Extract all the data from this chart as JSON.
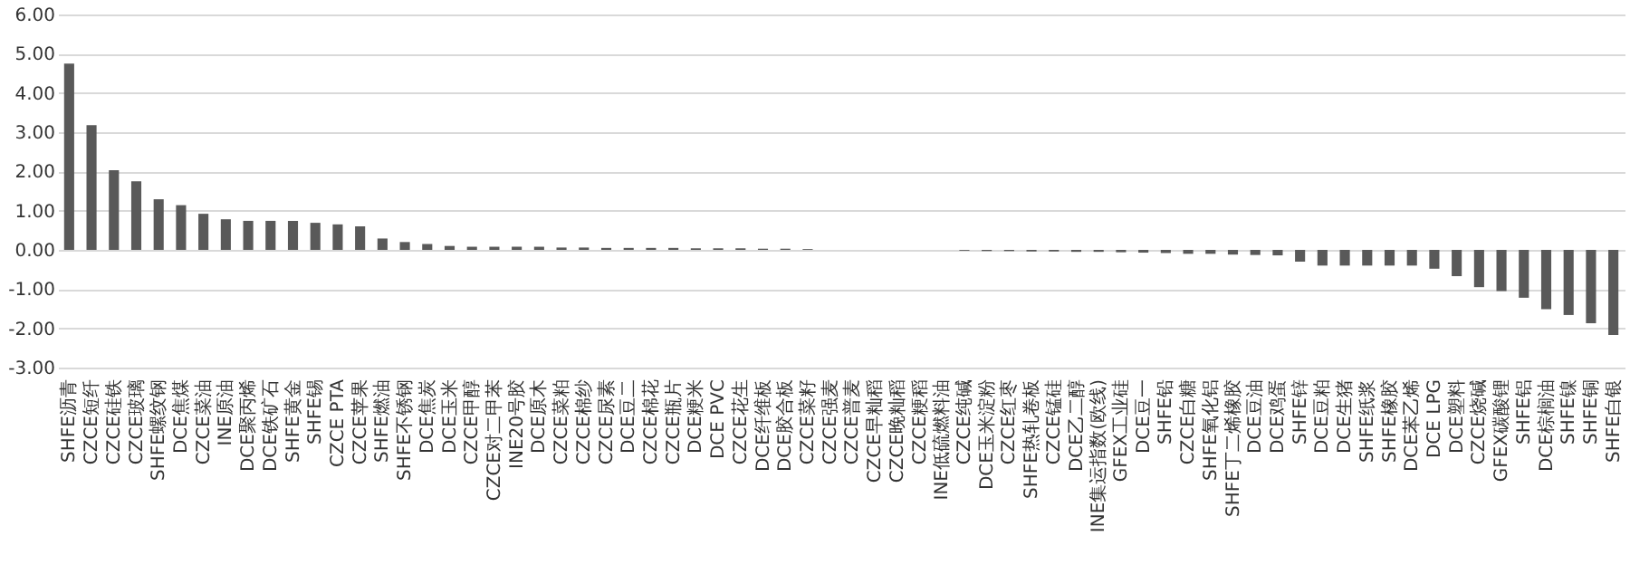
{
  "chart_data": {
    "type": "bar",
    "categories": [
      "SHFE沥青",
      "CZCE短纤",
      "CZCE硅铁",
      "CZCE玻璃",
      "SHFE螺纹钢",
      "DCE焦煤",
      "CZCE菜油",
      "INE原油",
      "DCE聚丙烯",
      "DCE铁矿石",
      "SHFE黄金",
      "SHFE锡",
      "CZCE PTA",
      "CZCE苹果",
      "SHFE燃油",
      "SHFE不锈钢",
      "DCE焦炭",
      "DCE玉米",
      "CZCE甲醇",
      "CZCE对二甲苯",
      "INE20号胶",
      "DCE原木",
      "CZCE菜粕",
      "CZCE棉纱",
      "CZCE尿素",
      "DCE豆二",
      "CZCE棉花",
      "CZCE瓶片",
      "DCE粳米",
      "DCE PVC",
      "CZCE花生",
      "DCE纤维板",
      "DCE胶合板",
      "CZCE菜籽",
      "CZCE强麦",
      "CZCE普麦",
      "CZCE早籼稻",
      "CZCE晚籼稻",
      "CZCE粳稻",
      "INE低硫燃料油",
      "CZCE纯碱",
      "DCE玉米淀粉",
      "CZCE红枣",
      "SHFE热轧卷板",
      "CZCE锰硅",
      "DCE乙二醇",
      "INE集运指数(欧线)",
      "GFEX工业硅",
      "DCE豆一",
      "SHFE铅",
      "CZCE白糖",
      "SHFE氧化铝",
      "SHFE丁二烯橡胶",
      "DCE豆油",
      "DCE鸡蛋",
      "SHFE锌",
      "DCE豆粕",
      "DCE生猪",
      "SHFE纸浆",
      "SHFE橡胶",
      "DCE苯乙烯",
      "DCE LPG",
      "DCE塑料",
      "CZCE烧碱",
      "GFEX碳酸锂",
      "SHFE铝",
      "DCE棕榈油",
      "SHFE镍",
      "SHFE铜",
      "SHFE白银"
    ],
    "values": [
      4.75,
      3.18,
      2.03,
      1.75,
      1.29,
      1.14,
      0.92,
      0.78,
      0.74,
      0.74,
      0.74,
      0.69,
      0.65,
      0.6,
      0.29,
      0.2,
      0.15,
      0.1,
      0.08,
      0.08,
      0.08,
      0.08,
      0.06,
      0.06,
      0.05,
      0.05,
      0.05,
      0.05,
      0.04,
      0.04,
      0.04,
      0.03,
      0.03,
      0.02,
      0,
      0,
      0,
      0,
      0,
      0,
      -0.02,
      -0.03,
      -0.03,
      -0.04,
      -0.04,
      -0.05,
      -0.05,
      -0.06,
      -0.07,
      -0.08,
      -0.1,
      -0.1,
      -0.12,
      -0.13,
      -0.14,
      -0.3,
      -0.4,
      -0.4,
      -0.4,
      -0.4,
      -0.4,
      -0.48,
      -0.67,
      -0.95,
      -1.05,
      -1.22,
      -1.51,
      -1.66,
      -1.87,
      -2.17
    ],
    "color": "#595959",
    "ylim": [
      -3,
      6
    ],
    "yticks": [
      {
        "value": -3,
        "label": "-3.00"
      },
      {
        "value": -2,
        "label": "-2.00"
      },
      {
        "value": -1,
        "label": "-1.00"
      },
      {
        "value": 0,
        "label": "0.00"
      },
      {
        "value": 1,
        "label": "1.00"
      },
      {
        "value": 2,
        "label": "2.00"
      },
      {
        "value": 3,
        "label": "3.00"
      },
      {
        "value": 4,
        "label": "4.00"
      },
      {
        "value": 5,
        "label": "5.00"
      },
      {
        "value": 6,
        "label": "6.00"
      }
    ],
    "grid": "y"
  }
}
